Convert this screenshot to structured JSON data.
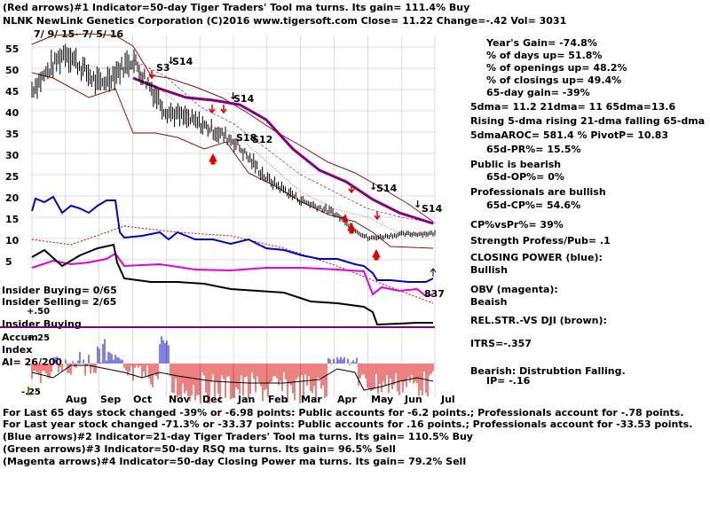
{
  "header": {
    "line1": "(Red arrows)#1 Indicator=50-day Tiger Traders' Tool ma turns. Its gain= 111.4% Buy",
    "line2": "NLNK   NewLink Genetics Corporation  (C)2016 www.tigersoft.com    Close=  11.22  Change=-.42 Vol= 3031"
  },
  "date_label": "7/ 9/ 15- 7/ 5/ 16",
  "signals": [
    "S3",
    "S14",
    "S14",
    "S18",
    "S12",
    "S14",
    "S14"
  ],
  "price_axis_ticks": [
    "55",
    "50",
    "45",
    "40",
    "35",
    "30",
    "25",
    "20",
    "15",
    "10",
    "5"
  ],
  "months": [
    "Aug",
    "Sep",
    "Oct",
    "Nov",
    "Dec",
    "Jan",
    "Feb",
    "Mar",
    "Apr",
    "May",
    "Jun",
    "Jul"
  ],
  "insider": {
    "buying": "Insider Buying= 0/65",
    "selling": "Insider Selling= 2/65",
    "plus50": "+.50",
    "panel_label": "Insider Buying",
    "accum": "Accum",
    "plus25": "+.25",
    "index": "Index",
    "ai": "AI= 26/200",
    "minus25": "-.25"
  },
  "cp_value_label": "837",
  "right_panel": [
    "Year's Gain= -74.8%",
    "% of days up= 51.8%",
    "% of openings up= 48.2%",
    "% of closings up= 49.4%",
    "65-day gain= -39%",
    "5dma= 11.2 21dma= 11 65dma=13.6",
    "Rising 5-dma rising 21-dma falling 65-dma",
    "5dmaAROC= 581.4 %  PivotP= 10.83",
    "65d-PR%= 15.5%",
    "Public is bearish",
    "65d-OP%= 0%",
    "Professionals are bullish",
    "65d-CP%= 54.6%",
    "CP%vsPr%=  39%",
    "Strength Profess/Pub= .1",
    "CLOSING POWER (blue):",
    "Bullish",
    "OBV (magenta):",
    "Beaish",
    "REL.STR.-VS DJI (brown):",
    "ITRS=-.357",
    "Bearish: Distrubtion Falling.",
    "IP= -.16"
  ],
  "footer": [
    "For Last 65 days stock changed -39% or -6.98 points:  Public accounts for -6.2 points.;  Professionals account for -.78 points.",
    "For Last year stock changed -71.3% or -33.37 points:  Public accounts for  .16 points.;  Professionals account for -33.53 points.",
    "(Blue arrows)#2 Indicator=21-day Tiger Traders' Tool ma turns. Its gain= 110.5% Buy",
    "(Green arrows)#3 Indicator=50-day RSQ ma turns. Its gain= 96.5% Sell",
    "(Magenta arrows)#4 Indicator=50-day Closing Power ma turns. Its gain= 79.2% Sell"
  ],
  "chart_data": {
    "type": "line",
    "x": [
      "Jul-15",
      "Aug-15",
      "Sep-15",
      "Oct-15",
      "Nov-15",
      "Dec-15",
      "Jan-16",
      "Feb-16",
      "Mar-16",
      "Apr-16",
      "May-16",
      "Jun-16",
      "Jul-16"
    ],
    "ylim": [
      0,
      57
    ],
    "series": [
      {
        "values": [
          45,
          54,
          46,
          52,
          40,
          37,
          33,
          24,
          19,
          16,
          10,
          11,
          11.2
        ]
      },
      {
        "values": [
          null,
          52,
          50,
          50,
          44,
          37,
          35,
          28,
          21,
          17,
          15,
          11,
          11
        ]
      },
      {
        "values": [
          null,
          null,
          null,
          52,
          48,
          41,
          37,
          31,
          25,
          21,
          17,
          15,
          13.6
        ]
      }
    ]
  }
}
